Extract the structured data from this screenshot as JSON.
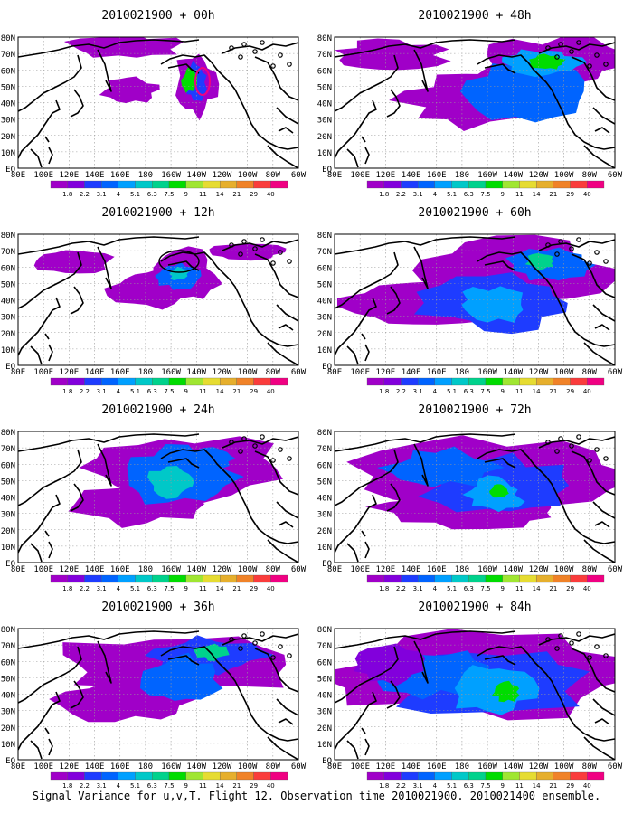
{
  "figure": {
    "caption": "Signal Variance for u,v,T. Flight 12. Observation time 2010021900. 2010021400 ensemble."
  },
  "lat_labels": [
    "80N",
    "70N",
    "60N",
    "50N",
    "40N",
    "30N",
    "20N",
    "10N",
    "EQ"
  ],
  "lon_labels": [
    "80E",
    "100E",
    "120E",
    "140E",
    "160E",
    "180",
    "160W",
    "140W",
    "120W",
    "100W",
    "80W",
    "60W"
  ],
  "colorbar": {
    "levels": [
      "1.8",
      "2.2",
      "3.1",
      "4",
      "5.1",
      "6.3",
      "7.5",
      "9",
      "11",
      "14",
      "21",
      "29",
      "40"
    ],
    "colors": [
      "#a000c8",
      "#8200dc",
      "#1e3cff",
      "#0064ff",
      "#00a0ff",
      "#00c8c8",
      "#00d28c",
      "#00dc00",
      "#a0e632",
      "#e6dc32",
      "#e6af2d",
      "#f08228",
      "#fa3c3c",
      "#f00082"
    ]
  },
  "panels": [
    {
      "id": "p00",
      "title": "2010021900 + 00h"
    },
    {
      "id": "p48",
      "title": "2010021900 + 48h"
    },
    {
      "id": "p12",
      "title": "2010021900 + 12h"
    },
    {
      "id": "p60",
      "title": "2010021900 + 60h"
    },
    {
      "id": "p24",
      "title": "2010021900 + 24h"
    },
    {
      "id": "p72",
      "title": "2010021900 + 72h"
    },
    {
      "id": "p36",
      "title": "2010021900 + 36h"
    },
    {
      "id": "p84",
      "title": "2010021900 + 84h"
    }
  ]
}
